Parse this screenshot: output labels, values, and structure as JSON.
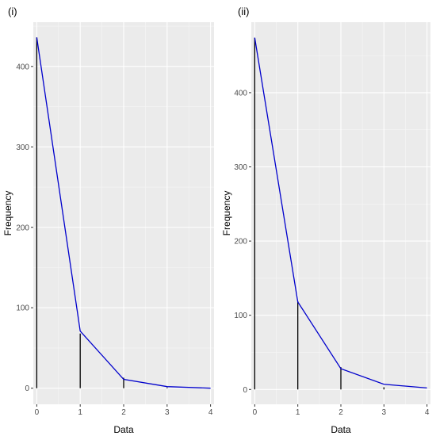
{
  "chart_data": [
    {
      "type": "bar",
      "panel_label": "(i)",
      "xlabel": "Data",
      "ylabel": "Frequency",
      "x_ticks": [
        0,
        1,
        2,
        3,
        4
      ],
      "y_ticks": [
        0,
        100,
        200,
        300,
        400
      ],
      "xlim": [
        -0.08,
        4.08
      ],
      "ylim": [
        -20,
        455
      ],
      "grid": true,
      "series": [
        {
          "type": "bar",
          "x": [
            0,
            1,
            2,
            3,
            4
          ],
          "values": [
            436,
            68,
            13,
            1,
            0
          ]
        },
        {
          "type": "line",
          "color": "#0000cc",
          "x": [
            0,
            1,
            2,
            3,
            4
          ],
          "values": [
            436,
            71,
            11,
            2,
            0
          ]
        }
      ]
    },
    {
      "type": "bar",
      "panel_label": "(ii)",
      "xlabel": "Data",
      "ylabel": "Frequency",
      "x_ticks": [
        0,
        1,
        2,
        3,
        4
      ],
      "y_ticks": [
        0,
        100,
        200,
        300,
        400
      ],
      "xlim": [
        -0.08,
        4.08
      ],
      "ylim": [
        -20,
        495
      ],
      "grid": true,
      "series": [
        {
          "type": "bar",
          "x": [
            0,
            1,
            2,
            3,
            4
          ],
          "values": [
            474,
            119,
            30,
            3,
            0
          ]
        },
        {
          "type": "line",
          "color": "#0000cc",
          "x": [
            0,
            1,
            2,
            3,
            4
          ],
          "values": [
            474,
            118,
            28,
            7,
            2
          ]
        }
      ]
    }
  ]
}
